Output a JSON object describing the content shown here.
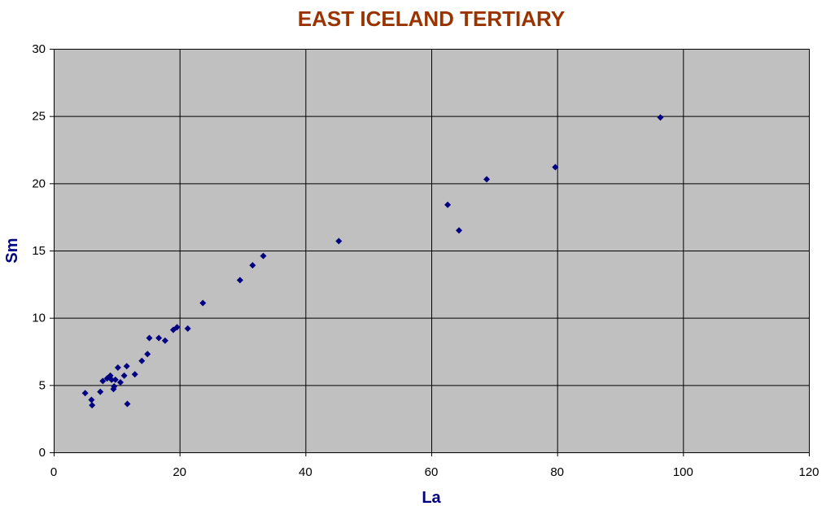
{
  "colors": {
    "plot_background": "#c0c0c0",
    "gridline": "#000000",
    "title": "#993300",
    "axis_label": "#000080",
    "marker": "#000080"
  },
  "chart_data": {
    "type": "scatter",
    "title": "EAST ICELAND TERTIARY",
    "xlabel": "La",
    "ylabel": "Sm",
    "xlim": [
      0,
      120
    ],
    "ylim": [
      0,
      30
    ],
    "x_ticks": [
      0,
      20,
      40,
      60,
      80,
      100,
      120
    ],
    "y_ticks": [
      0,
      5,
      10,
      15,
      20,
      25,
      30
    ],
    "grid": true,
    "marker": "diamond",
    "series": [
      {
        "x": [
          5.0,
          6.0,
          6.1,
          7.4,
          7.8,
          8.5,
          9.0,
          9.2,
          9.5,
          9.6,
          9.8,
          10.2,
          10.6,
          11.2,
          11.6,
          11.7,
          12.9,
          14.0,
          14.9,
          15.2,
          16.7,
          17.7,
          19.0,
          19.6,
          21.3,
          23.7,
          29.6,
          31.6,
          33.3,
          45.3,
          62.6,
          64.4,
          68.8,
          79.7,
          96.4
        ],
        "y": [
          4.4,
          3.9,
          3.5,
          4.5,
          5.3,
          5.5,
          5.7,
          5.4,
          4.7,
          4.9,
          5.4,
          6.3,
          5.2,
          5.7,
          6.4,
          3.6,
          5.8,
          6.8,
          7.3,
          8.5,
          8.5,
          8.3,
          9.1,
          9.3,
          9.2,
          11.1,
          12.8,
          13.9,
          14.6,
          15.7,
          18.4,
          16.5,
          20.3,
          21.2,
          24.9
        ]
      }
    ]
  }
}
